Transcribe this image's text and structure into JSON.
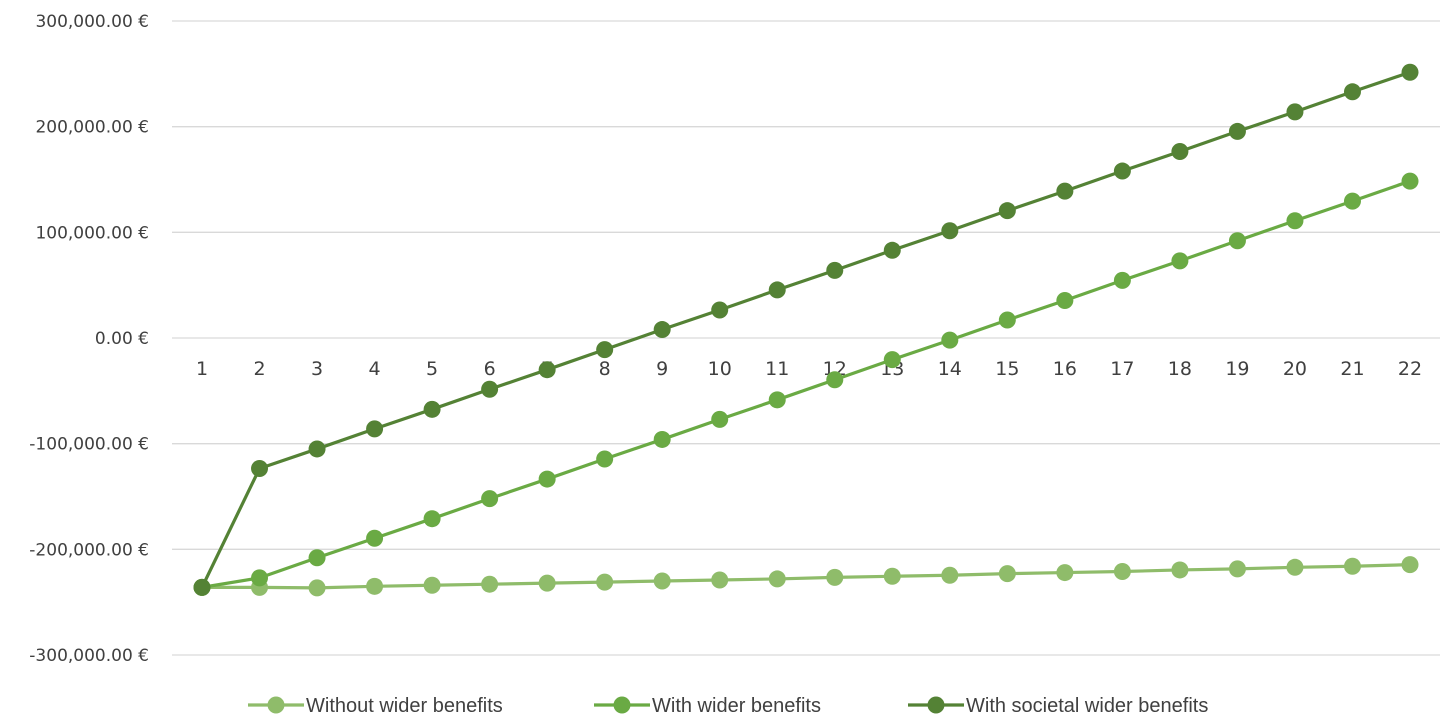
{
  "chart_data": {
    "type": "line",
    "title": "",
    "xlabel": "",
    "ylabel": "",
    "x": [
      1,
      2,
      3,
      4,
      5,
      6,
      7,
      8,
      9,
      10,
      11,
      12,
      13,
      14,
      15,
      16,
      17,
      18,
      19,
      20,
      21,
      22
    ],
    "ylim": [
      -300000,
      300000
    ],
    "y_ticks": [
      300000,
      200000,
      100000,
      0,
      -100000,
      -200000,
      -300000
    ],
    "y_tick_labels": [
      "300,000.00 €",
      "200,000.00 €",
      "100,000.00 €",
      "0.00 €",
      "-100,000.00 €",
      "-200,000.00 €",
      "-300,000.00 €"
    ],
    "grid": true,
    "legend_position": "bottom",
    "series": [
      {
        "name": "Without wider benefits",
        "color": "#8fbc6a",
        "values": [
          -236000,
          -236000,
          -236500,
          -235000,
          -234000,
          -233000,
          -232000,
          -231000,
          -230000,
          -229000,
          -228000,
          -226500,
          -225500,
          -224500,
          -223000,
          -222000,
          -221000,
          -219500,
          -218500,
          -217000,
          -216000,
          -214500
        ]
      },
      {
        "name": "With wider benefits",
        "color": "#6aaa44",
        "values": [
          -236000,
          -227000,
          -208000,
          -189500,
          -171000,
          -152000,
          -133500,
          -114500,
          -96000,
          -77000,
          -58500,
          -39500,
          -20500,
          -2000,
          17000,
          35500,
          54500,
          73000,
          92000,
          111000,
          129500,
          148500
        ]
      },
      {
        "name": "With societal wider benefits",
        "color": "#548235",
        "values": [
          -236000,
          -123500,
          -105000,
          -86000,
          -67500,
          -48500,
          -30000,
          -11000,
          8000,
          26500,
          45500,
          64000,
          83000,
          101500,
          120500,
          139000,
          158000,
          176500,
          195500,
          214000,
          233000,
          251500
        ]
      }
    ]
  }
}
